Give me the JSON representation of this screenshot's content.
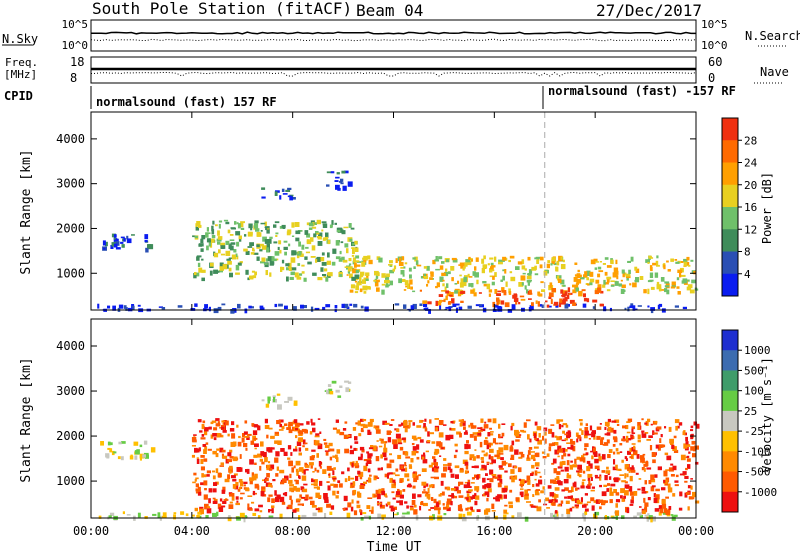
{
  "header": {
    "station": "South Pole Station (fitACF)",
    "beam": "Beam 04",
    "date": "27/Dec/2017"
  },
  "strip_panels": {
    "nsky_label": "N.Sky",
    "nsky_ticks": [
      "10^5",
      "10^0"
    ],
    "nsearch_label": "N.Search",
    "nsearch_ticks": [
      "10^5",
      "10^0"
    ],
    "freq_label_top": "Freq.",
    "freq_label_unit": "[MHz]",
    "freq_ticks": [
      "18",
      "8"
    ],
    "nave_label": "Nave",
    "nave_ticks": [
      "60",
      "0"
    ],
    "cpid_label": "CPID",
    "cpid_segments": [
      {
        "name": "normalsound (fast) 157 RF",
        "start_hour": 0
      },
      {
        "name": "normalsound (fast) -157 RF",
        "start_hour": 18
      }
    ]
  },
  "chart_data": [
    {
      "type": "heatmap",
      "quantity": "power",
      "ylabel": "Slant Range [km]",
      "ylim": [
        180,
        4600
      ],
      "xlim_hours": [
        0,
        24
      ],
      "yticks": [
        1000,
        2000,
        3000,
        4000
      ],
      "colorbar_label": "Power [dB]",
      "colorbar_ticks": [
        "4",
        "8",
        "12",
        "16",
        "20",
        "24",
        "28"
      ],
      "colorbar_colors": [
        "#0a1cf0",
        "#2a4fb4",
        "#3f8c5a",
        "#6fc06a",
        "#e8d020",
        "#ff9f00",
        "#ff6a00",
        "#f03010"
      ],
      "regions": [
        {
          "t0": 0.2,
          "t1": 24,
          "r0": 200,
          "r1": 330,
          "level": 0
        },
        {
          "t0": 0.3,
          "t1": 2.4,
          "r0": 1550,
          "r1": 1900,
          "level": 1
        },
        {
          "t0": 6.7,
          "t1": 8.1,
          "r0": 2700,
          "r1": 2950,
          "level": 1
        },
        {
          "t0": 9.2,
          "t1": 10.2,
          "r0": 2900,
          "r1": 3300,
          "level": 1
        },
        {
          "t0": 4.0,
          "t1": 10.5,
          "r0": 900,
          "r1": 2200,
          "level": 3
        },
        {
          "t0": 10.0,
          "t1": 24,
          "r0": 600,
          "r1": 1400,
          "level": 4
        },
        {
          "t0": 13.0,
          "t1": 17.8,
          "r0": 350,
          "r1": 650,
          "level": 6
        },
        {
          "t0": 18.0,
          "t1": 20.2,
          "r0": 300,
          "r1": 700,
          "level": 7
        }
      ]
    },
    {
      "type": "heatmap",
      "quantity": "velocity",
      "xlabel": "Time UT",
      "ylabel": "Slant Range [km]",
      "ylim": [
        180,
        4600
      ],
      "xlim_hours": [
        0,
        24
      ],
      "yticks": [
        1000,
        2000,
        3000,
        4000
      ],
      "xticks": [
        "00:00",
        "04:00",
        "08:00",
        "12:00",
        "16:00",
        "20:00",
        "00:00"
      ],
      "colorbar_label": "Velocity [m s⁻¹]",
      "colorbar_ticks": [
        "1000",
        "500",
        "100",
        "25",
        "-25",
        "-100",
        "-500",
        "-1000"
      ],
      "colorbar_colors": [
        "#1f2fd0",
        "#3c6cb0",
        "#3f9c6a",
        "#66cc44",
        "#c8c8c0",
        "#ffc000",
        "#ff8a00",
        "#ff5a00",
        "#ee1010"
      ],
      "regions": [
        {
          "t0": 0.2,
          "t1": 24,
          "r0": 200,
          "r1": 330,
          "level": 4
        },
        {
          "t0": 0.3,
          "t1": 2.4,
          "r0": 1550,
          "r1": 1900,
          "level": 4
        },
        {
          "t0": 6.7,
          "t1": 8.1,
          "r0": 2700,
          "r1": 2950,
          "level": 4
        },
        {
          "t0": 9.2,
          "t1": 10.2,
          "r0": 2900,
          "r1": 3300,
          "level": 4
        },
        {
          "t0": 4.0,
          "t1": 24,
          "r0": 350,
          "r1": 2400,
          "level": 7
        }
      ]
    }
  ]
}
